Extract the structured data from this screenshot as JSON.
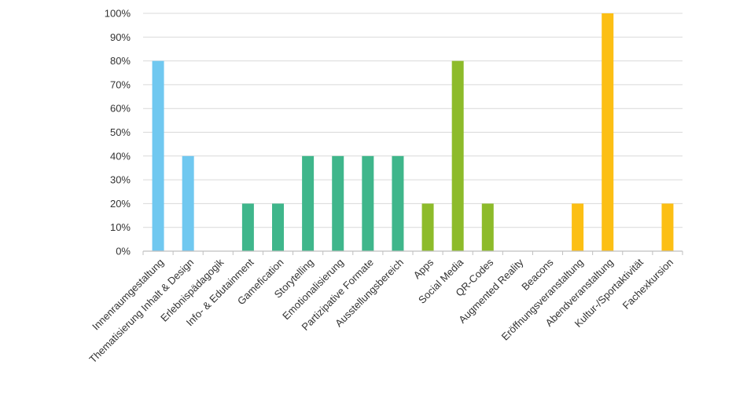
{
  "chart_data": {
    "type": "bar",
    "title": "",
    "xlabel": "",
    "ylabel": "",
    "ylim": [
      0,
      100
    ],
    "y_unit": "%",
    "y_ticks": [
      "0%",
      "10%",
      "20%",
      "30%",
      "40%",
      "50%",
      "60%",
      "70%",
      "80%",
      "90%",
      "100%"
    ],
    "grid": true,
    "legend": "none",
    "categories": [
      "Innenraumgestaltung",
      "Thematisierung Inhalt & Design",
      "Erlebnispädagogik",
      "Info- & Edutainment",
      "Gamefication",
      "Storytelling",
      "Emotionalisierung",
      "Partizipative Formate",
      "Ausstellungsbereich",
      "Apps",
      "Social Media",
      "QR-Codes",
      "Augmented Reality",
      "Beacons",
      "Eröffnungsveranstaltung",
      "Abendveranstaltung",
      "Kultur-/Sportaktivität",
      "Fachexkursion"
    ],
    "values": [
      80,
      40,
      0,
      20,
      20,
      40,
      40,
      40,
      40,
      20,
      80,
      20,
      0,
      0,
      20,
      100,
      0,
      20
    ],
    "colors": [
      "#70c8f0",
      "#70c8f0",
      "#70c8f0",
      "#3fb68b",
      "#3fb68b",
      "#3fb68b",
      "#3fb68b",
      "#3fb68b",
      "#3fb68b",
      "#8dbb2a",
      "#8dbb2a",
      "#8dbb2a",
      "#8dbb2a",
      "#8dbb2a",
      "#fcbf14",
      "#fcbf14",
      "#fcbf14",
      "#fcbf14"
    ],
    "gridline_color": "#d9d9d9",
    "axis_color": "#bfbfbf"
  }
}
